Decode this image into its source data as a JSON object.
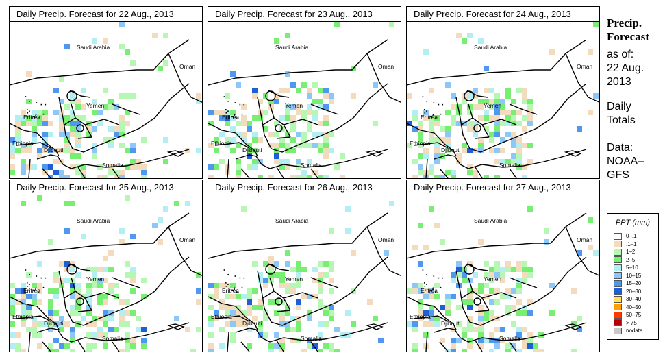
{
  "panels": [
    {
      "title": "Daily Precip. Forecast for  22 Aug., 2013"
    },
    {
      "title": "Daily Precip. Forecast for  23 Aug., 2013"
    },
    {
      "title": "Daily Precip. Forecast for  24 Aug., 2013"
    },
    {
      "title": "Daily Precip. Forecast for  25 Aug., 2013"
    },
    {
      "title": "Daily Precip. Forecast for  26 Aug., 2013"
    },
    {
      "title": "Daily Precip. Forecast for  27 Aug., 2013"
    }
  ],
  "map_labels": {
    "saudi": "Saudi Arabia",
    "oman": "Oman",
    "yemen": "Yemen",
    "eritrea": "Eritrea",
    "ethiopia": "Ethiopia",
    "djibouti": "Djibouti",
    "somalia": "Somalia"
  },
  "sidebar": {
    "title_line1": "Precip.",
    "title_line2": "Forecast",
    "asof_line1": "as of:",
    "asof_line2": "22 Aug.",
    "asof_line3": "2013",
    "totals_line1": "Daily",
    "totals_line2": "Totals",
    "data_line1": "Data:",
    "data_line2": "NOAA–",
    "data_line3": "GFS"
  },
  "legend": {
    "title": "PPT (mm)",
    "items": [
      {
        "label": "0–.1",
        "color": "#ffffff"
      },
      {
        "label": ".1–1",
        "color": "#f3dcbd"
      },
      {
        "label": "1–2",
        "color": "#b6f7b3"
      },
      {
        "label": "2–5",
        "color": "#78ee73"
      },
      {
        "label": "5–10",
        "color": "#b3eef2"
      },
      {
        "label": "10–15",
        "color": "#8cc7f7"
      },
      {
        "label": "15–20",
        "color": "#4e99ef"
      },
      {
        "label": "20–30",
        "color": "#1f5fd6"
      },
      {
        "label": "30–40",
        "color": "#ffe45a"
      },
      {
        "label": "40–50",
        "color": "#ffa000"
      },
      {
        "label": "50–75",
        "color": "#ff3a00"
      },
      {
        "label": "> 75",
        "color": "#b40000"
      },
      {
        "label": "nodata",
        "color": "#c8c8c8"
      }
    ]
  }
}
